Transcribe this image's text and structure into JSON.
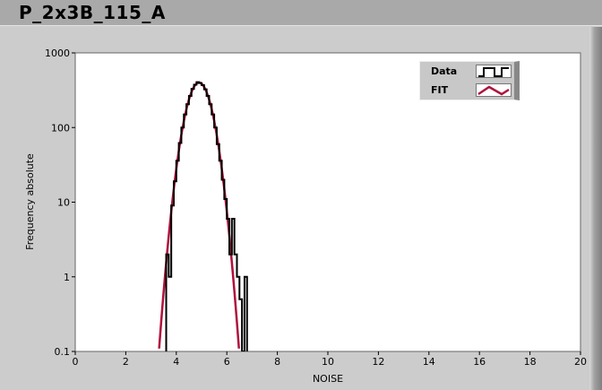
{
  "window": {
    "title": "P_2x3B_115_A"
  },
  "chart_data": {
    "type": "line",
    "xlabel": "NOISE",
    "ylabel": "Frequency absolute",
    "xlim": [
      0,
      20
    ],
    "ylim": [
      0.1,
      1000
    ],
    "yscale": "log",
    "grid": false,
    "xticks": [
      "0",
      "2",
      "4",
      "6",
      "8",
      "10",
      "12",
      "14",
      "16",
      "18",
      "20"
    ],
    "yticks": [
      "0.1",
      "1",
      "10",
      "100",
      "1000"
    ],
    "legend": {
      "placement": "top-right",
      "entries": [
        "Data",
        "FIT"
      ]
    },
    "series": [
      {
        "name": "Data",
        "style": "step",
        "color": "#000000",
        "x": [
          3.6,
          3.7,
          3.8,
          3.9,
          4.0,
          4.1,
          4.2,
          4.3,
          4.4,
          4.5,
          4.6,
          4.7,
          4.8,
          4.9,
          5.0,
          5.1,
          5.2,
          5.3,
          5.4,
          5.5,
          5.6,
          5.7,
          5.8,
          5.9,
          6.0,
          6.1,
          6.2,
          6.3,
          6.4,
          6.5,
          6.6,
          6.7
        ],
        "values": [
          2,
          1,
          9,
          19,
          36,
          62,
          100,
          150,
          205,
          265,
          330,
          375,
          405,
          395,
          370,
          325,
          265,
          205,
          150,
          100,
          60,
          36,
          20,
          11,
          6,
          2,
          6,
          2,
          1,
          0.5,
          0,
          1
        ]
      },
      {
        "name": "FIT",
        "style": "line",
        "color": "#b0103c",
        "model": "gaussian",
        "amplitude": 400,
        "mean": 4.9,
        "sigma": 0.39
      }
    ]
  }
}
